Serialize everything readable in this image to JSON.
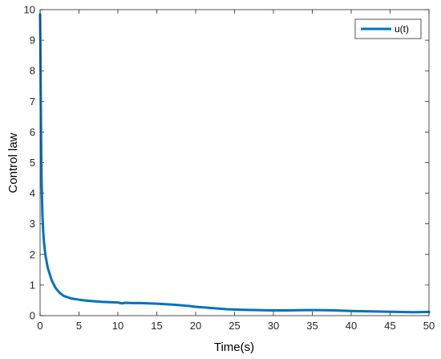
{
  "chart_data": {
    "type": "line",
    "xlabel": "Time(s)",
    "ylabel": "Control law",
    "xlim": [
      0,
      50
    ],
    "ylim": [
      0,
      10
    ],
    "xticks": [
      0,
      5,
      10,
      15,
      20,
      25,
      30,
      35,
      40,
      45,
      50
    ],
    "yticks": [
      0,
      1,
      2,
      3,
      4,
      5,
      6,
      7,
      8,
      9,
      10
    ],
    "grid": false,
    "legend_position": "top-right",
    "series": [
      {
        "name": "u(t)",
        "color": "#0072BD",
        "x": [
          0,
          0.05,
          0.1,
          0.15,
          0.2,
          0.3,
          0.4,
          0.5,
          0.7,
          1.0,
          1.5,
          2.0,
          2.5,
          3.0,
          4.0,
          5.0,
          6.0,
          7.0,
          8.0,
          9.0,
          10.0,
          10.5,
          11.0,
          12.0,
          13.0,
          15.0,
          17.0,
          19.0,
          20.0,
          22.0,
          24.0,
          26.0,
          28.0,
          30.0,
          32.0,
          34.0,
          36.0,
          38.0,
          40.0,
          42.0,
          44.0,
          46.0,
          48.0,
          50.0
        ],
        "y": [
          9.85,
          8.5,
          6.8,
          5.3,
          4.3,
          3.3,
          2.75,
          2.4,
          1.95,
          1.55,
          1.15,
          0.9,
          0.75,
          0.65,
          0.56,
          0.52,
          0.49,
          0.47,
          0.45,
          0.44,
          0.43,
          0.4,
          0.42,
          0.41,
          0.41,
          0.39,
          0.36,
          0.32,
          0.29,
          0.25,
          0.21,
          0.19,
          0.18,
          0.17,
          0.17,
          0.18,
          0.18,
          0.17,
          0.15,
          0.14,
          0.13,
          0.12,
          0.11,
          0.12
        ]
      }
    ]
  }
}
